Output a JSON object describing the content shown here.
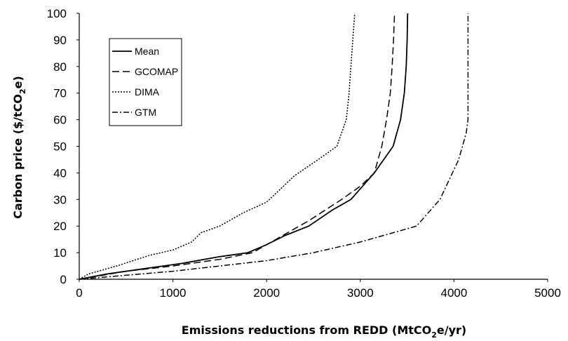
{
  "chart_data": {
    "type": "line",
    "xlabel": {
      "before": "Emissions reductions from REDD (MtCO",
      "sub": "2",
      "after": "e/yr)"
    },
    "ylabel": {
      "before": "Carbon price ($/tCO",
      "sub": "2",
      "after": "e)"
    },
    "xlim": [
      0,
      5000
    ],
    "ylim": [
      0,
      100
    ],
    "xticks": [
      "0",
      "1000",
      "2000",
      "3000",
      "4000",
      "5000"
    ],
    "yticks": [
      "0",
      "10",
      "20",
      "30",
      "40",
      "50",
      "60",
      "70",
      "80",
      "90",
      "100"
    ],
    "grid": false,
    "legend_position": "top-left",
    "series": [
      {
        "name": "Mean",
        "dash": "solid",
        "points": [
          [
            0,
            0
          ],
          [
            300,
            2
          ],
          [
            700,
            4
          ],
          [
            1100,
            6
          ],
          [
            1500,
            8.5
          ],
          [
            1800,
            10
          ],
          [
            2000,
            13
          ],
          [
            2200,
            16.5
          ],
          [
            2450,
            20
          ],
          [
            2700,
            26
          ],
          [
            2900,
            30
          ],
          [
            3150,
            40
          ],
          [
            3350,
            50
          ],
          [
            3430,
            60
          ],
          [
            3470,
            70
          ],
          [
            3490,
            80
          ],
          [
            3500,
            90
          ],
          [
            3505,
            100
          ]
        ]
      },
      {
        "name": "GCOMAP",
        "dash": "dash",
        "points": [
          [
            0,
            0
          ],
          [
            500,
            3
          ],
          [
            1000,
            5
          ],
          [
            1500,
            7.5
          ],
          [
            1850,
            10
          ],
          [
            2100,
            15
          ],
          [
            2450,
            22
          ],
          [
            2800,
            30
          ],
          [
            3000,
            35
          ],
          [
            3150,
            40
          ],
          [
            3230,
            50
          ],
          [
            3280,
            60
          ],
          [
            3320,
            70
          ],
          [
            3340,
            80
          ],
          [
            3355,
            90
          ],
          [
            3365,
            100
          ]
        ]
      },
      {
        "name": "DIMA",
        "dash": "dot",
        "points": [
          [
            0,
            0
          ],
          [
            100,
            2
          ],
          [
            400,
            5
          ],
          [
            750,
            9
          ],
          [
            1000,
            11
          ],
          [
            1200,
            14
          ],
          [
            1300,
            17.5
          ],
          [
            1500,
            20
          ],
          [
            1750,
            25
          ],
          [
            2000,
            29
          ],
          [
            2300,
            39
          ],
          [
            2550,
            45
          ],
          [
            2750,
            50
          ],
          [
            2850,
            60
          ],
          [
            2880,
            70
          ],
          [
            2900,
            80
          ],
          [
            2920,
            90
          ],
          [
            2940,
            100
          ]
        ]
      },
      {
        "name": "GTM",
        "dash": "dashdot",
        "points": [
          [
            0,
            0
          ],
          [
            1000,
            3
          ],
          [
            2000,
            7
          ],
          [
            2500,
            10
          ],
          [
            3000,
            14
          ],
          [
            3300,
            17
          ],
          [
            3600,
            20
          ],
          [
            3850,
            30
          ],
          [
            4050,
            45
          ],
          [
            4130,
            55
          ],
          [
            4150,
            60
          ],
          [
            4150,
            70
          ],
          [
            4150,
            80
          ],
          [
            4150,
            90
          ],
          [
            4150,
            100
          ]
        ]
      }
    ]
  }
}
